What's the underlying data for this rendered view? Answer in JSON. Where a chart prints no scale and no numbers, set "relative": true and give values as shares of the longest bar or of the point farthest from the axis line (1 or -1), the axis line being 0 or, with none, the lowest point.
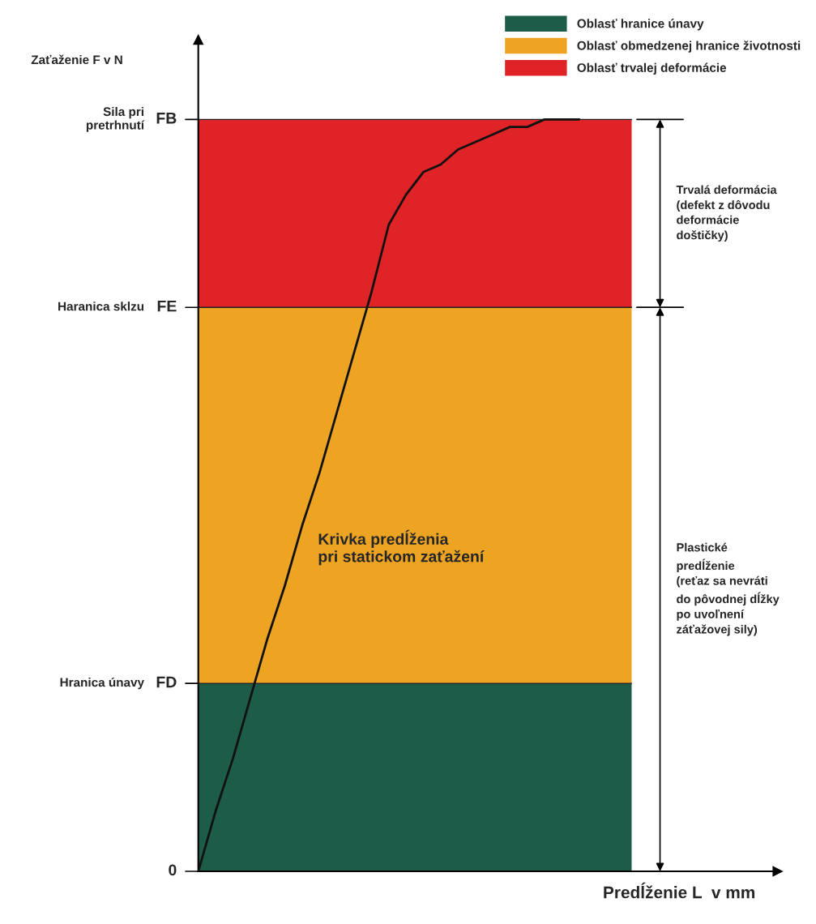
{
  "chart_data": {
    "type": "line",
    "relative": true,
    "xlabel": "Predĺženie L  v mm",
    "categories": [
      null,
      null,
      null,
      null,
      null,
      null,
      null,
      null,
      null,
      null,
      null,
      null,
      null,
      null,
      null,
      null,
      null,
      null,
      null,
      null,
      null,
      null,
      null
    ],
    "legend": "top right",
    "series": [
      {
        "name": "Krivka predĺženia\npri statickom zaťažení",
        "color": "#111111",
        "values": [
          0,
          0.08,
          0.15,
          0.23,
          0.31,
          0.38,
          0.46,
          0.53,
          0.61,
          0.69,
          0.77,
          0.86,
          0.9,
          0.93,
          0.94,
          0.96,
          0.97,
          0.98,
          0.99,
          0.99,
          1,
          1,
          1
        ]
      }
    ],
    "ref_lines": [
      {
        "axis": "y",
        "value": 0,
        "label": "0"
      },
      {
        "axis": "y",
        "value": 0.25,
        "label": "FD"
      },
      {
        "axis": "y",
        "value": 0.75,
        "label": "FE"
      },
      {
        "axis": "y",
        "value": 1,
        "label": "FB"
      }
    ],
    "bands": [
      {
        "axis": "y",
        "from": 0,
        "to": 0.25,
        "label": "Oblasť hranice únavy",
        "color": "#1d5c48"
      },
      {
        "axis": "y",
        "from": 0.25,
        "to": 0.75,
        "label": "Oblasť obmedzenej hranice životnosti",
        "color": "#eea423"
      },
      {
        "axis": "y",
        "from": 0.75,
        "to": 1,
        "label": "Oblasť trvalej deformácie",
        "color": "#df2326"
      }
    ],
    "annotations": [
      "Zaťaženie F v N",
      "Sila pri\npretrhnutí",
      "Haranica sklzu",
      "Hranica únavy",
      "Trvalá deformácia\n(defekt z dôvodu\ndeformácie\ndoštičky)",
      "Plastické\npredĺženie\n(reťaz sa nevráti\ndo pôvodnej dĺžky\npo uvoľnení\nzáťažovej sily)"
    ]
  }
}
